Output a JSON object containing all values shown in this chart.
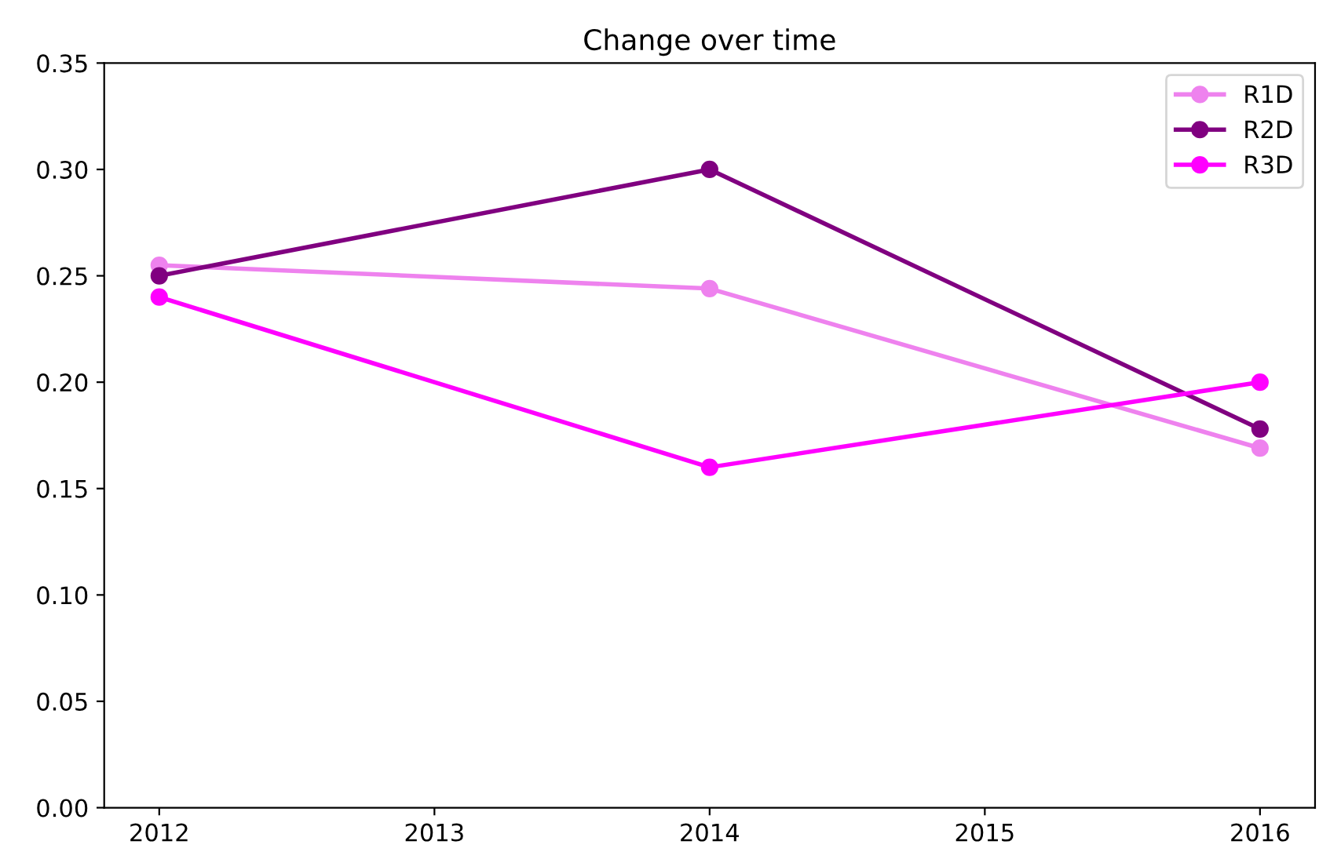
{
  "chart_data": {
    "type": "line",
    "title": "Change over time",
    "x": [
      2012,
      2014,
      2016
    ],
    "series": [
      {
        "name": "R1D",
        "color": "#ee82ee",
        "values": [
          0.255,
          0.244,
          0.169
        ]
      },
      {
        "name": "R2D",
        "color": "#800080",
        "values": [
          0.25,
          0.3,
          0.178
        ]
      },
      {
        "name": "R3D",
        "color": "#ff00ff",
        "values": [
          0.24,
          0.16,
          0.2
        ]
      }
    ],
    "xlim": [
      2011.8,
      2016.2
    ],
    "xticks": [
      2012,
      2013,
      2014,
      2015,
      2016
    ],
    "ylim": [
      0,
      0.35
    ],
    "yticks": [
      {
        "value": 0,
        "label": "0.00"
      },
      {
        "value": 0.05,
        "label": "0.05"
      },
      {
        "value": 0.1,
        "label": "0.10"
      },
      {
        "value": 0.15,
        "label": "0.15"
      },
      {
        "value": 0.2,
        "label": "0.20"
      },
      {
        "value": 0.25,
        "label": "0.25"
      },
      {
        "value": 0.3,
        "label": "0.30"
      },
      {
        "value": 0.35,
        "label": "0.35"
      }
    ],
    "grid": false,
    "legend": "top right",
    "marker": "circle",
    "line_style": "solid"
  }
}
